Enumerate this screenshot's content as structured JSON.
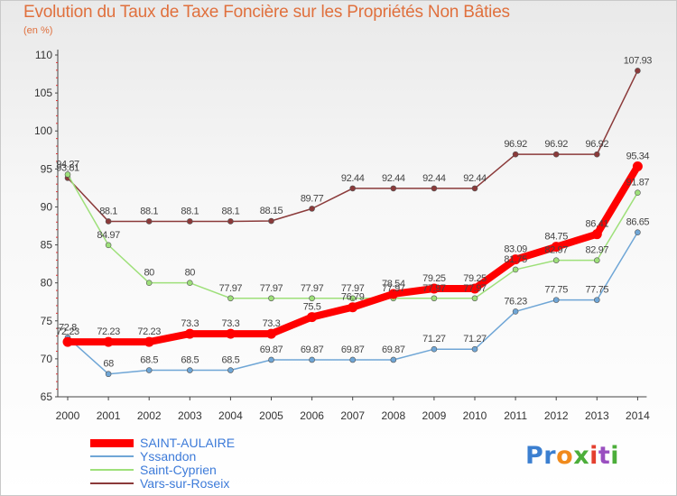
{
  "title": "Evolution du Taux de Taxe Foncière sur les Propriétés Non Bâties",
  "subtitle": "(en %)",
  "logo_text": "Proxiti",
  "chart_data": {
    "type": "line",
    "title": "Evolution du Taux de Taxe Foncière sur les Propriétés Non Bâties",
    "ylabel": "(en %)",
    "xlabel": "",
    "x": [
      "2000",
      "2001",
      "2002",
      "2003",
      "2004",
      "2005",
      "2006",
      "2007",
      "2008",
      "2009",
      "2010",
      "2011",
      "2012",
      "2013",
      "2014"
    ],
    "ylim": [
      65,
      110
    ],
    "yticks": [
      65,
      70,
      75,
      80,
      85,
      90,
      95,
      100,
      105,
      110
    ],
    "grid": false,
    "legend_position": "bottom-left",
    "series": [
      {
        "name": "SAINT-AULAIRE",
        "color": "#ff0000",
        "values": [
          72.23,
          72.23,
          72.23,
          73.3,
          73.3,
          73.3,
          75.5,
          76.79,
          78.54,
          79.25,
          79.25,
          83.09,
          84.75,
          86.41,
          95.34
        ],
        "labels": [
          "72.23",
          "72.23",
          "72.23",
          "73.3",
          "73.3",
          "73.3",
          "75.5",
          "76.79",
          "78.54",
          "79.25",
          "79.25",
          "83.09",
          "84.75",
          "86.41",
          "95.34"
        ]
      },
      {
        "name": "Yssandon",
        "color": "#6fa6d6",
        "values": [
          72.8,
          68,
          68.5,
          68.5,
          68.5,
          69.87,
          69.87,
          69.87,
          69.87,
          71.27,
          71.27,
          76.23,
          77.75,
          77.75,
          86.65
        ],
        "labels": [
          "72.8",
          "68",
          "68.5",
          "68.5",
          "68.5",
          "69.87",
          "69.87",
          "69.87",
          "69.87",
          "71.27",
          "71.27",
          "76.23",
          "77.75",
          "77.75",
          "86.65"
        ]
      },
      {
        "name": "Saint-Cyprien",
        "color": "#9ee07a",
        "values": [
          94.27,
          84.97,
          80,
          80,
          77.97,
          77.97,
          77.97,
          77.97,
          77.97,
          77.97,
          77.97,
          81.75,
          82.97,
          82.97,
          91.87
        ],
        "labels": [
          "94.27",
          "84.97",
          "80",
          "80",
          "77.97",
          "77.97",
          "77.97",
          "77.97",
          "77.97",
          "77.97",
          "77.97",
          "81.75",
          "82.97",
          "82.97",
          "91.87"
        ]
      },
      {
        "name": "Vars-sur-Roseix",
        "color": "#8b3a3a",
        "values": [
          93.81,
          88.1,
          88.1,
          88.1,
          88.1,
          88.15,
          89.77,
          92.44,
          92.44,
          92.44,
          92.44,
          96.92,
          96.92,
          96.92,
          107.93
        ],
        "labels": [
          "93.81",
          "88.1",
          "88.1",
          "88.1",
          "88.1",
          "88.15",
          "89.77",
          "92.44",
          "92.44",
          "92.44",
          "92.44",
          "96.92",
          "96.92",
          "96.92",
          "107.93"
        ]
      }
    ]
  }
}
